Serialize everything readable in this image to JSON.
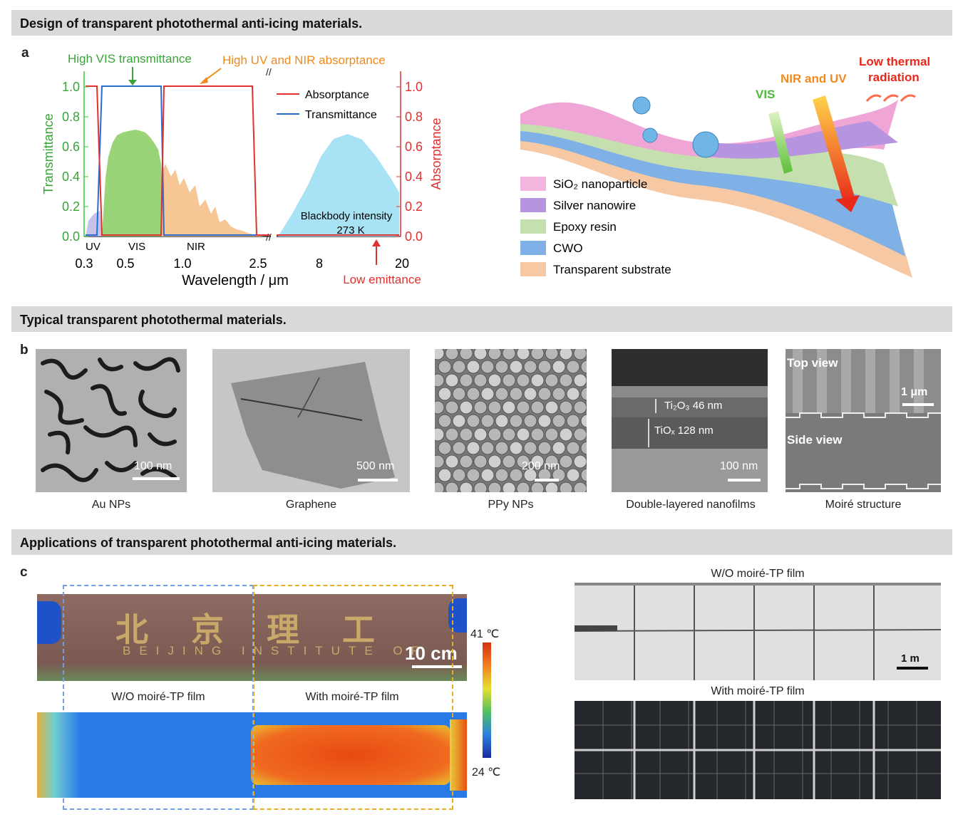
{
  "sections": {
    "s1": "Design of transparent photothermal anti-icing materials.",
    "s2": "Typical transparent photothermal materials.",
    "s3": "Applications of transparent photothermal anti-icing materials."
  },
  "panels": {
    "a": "a",
    "b": "b",
    "c": "c"
  },
  "chart_a": {
    "annotations": {
      "vis": "High VIS transmittance",
      "uv_nir": "High UV and NIR absorptance",
      "blackbody1": "Blackbody intensity",
      "blackbody2": "273 K",
      "low_emit": "Low emittance"
    },
    "legend": {
      "absorptance": "Absorptance",
      "transmittance": "Transmittance"
    },
    "region_labels": {
      "uv": "UV",
      "vis": "VIS",
      "nir": "NIR"
    },
    "y_left_ticks": [
      "0.0",
      "0.2",
      "0.4",
      "0.6",
      "0.8",
      "1.0"
    ],
    "y_right_ticks": [
      "0.0",
      "0.2",
      "0.4",
      "0.6",
      "0.8",
      "1.0"
    ],
    "x_ticks": [
      "0.3",
      "0.5",
      "1.0",
      "2.5",
      "8",
      "20"
    ],
    "ylabel_left": "Transmittance",
    "ylabel_right": "Absorptance",
    "xlabel": "Wavelength / μm"
  },
  "schematic": {
    "nir_uv": "NIR and UV",
    "low_thermal1": "Low thermal",
    "low_thermal2": "radiation",
    "vis": "VIS",
    "legend": [
      "SiO₂ nanoparticle",
      "Silver nanowire",
      "Epoxy resin",
      "CWO",
      "Transparent substrate"
    ],
    "legend_colors": [
      "#f2b6de",
      "#b794e0",
      "#c6dfae",
      "#7fb0e6",
      "#f6c9a4"
    ]
  },
  "materials": [
    {
      "caption": "Au NPs",
      "scale": "100 nm"
    },
    {
      "caption": "Graphene",
      "scale": "500 nm"
    },
    {
      "caption": "PPy NPs",
      "scale": "200 nm"
    },
    {
      "caption": "Double-layered nanofilms",
      "scale": "100 nm",
      "layer1": "Ti₂O₃ 46 nm",
      "layer2": "TiOₓ 128 nm"
    },
    {
      "caption": "Moiré structure",
      "scale": "1 μm",
      "top": "Top view",
      "side": "Side view"
    }
  ],
  "applications": {
    "sign_chinese": "北 京 理 工",
    "sign_english": "BEIJING INSTITUTE OF",
    "scale_sign": "10 cm",
    "wo_label": "W/O moiré-TP film",
    "with_label": "With moiré-TP film",
    "temp_max": "41 ℃",
    "temp_min": "24 ℃",
    "solar_wo": "W/O moiré-TP film",
    "solar_with": "With moiré-TP film",
    "solar_scale": "1 m"
  }
}
